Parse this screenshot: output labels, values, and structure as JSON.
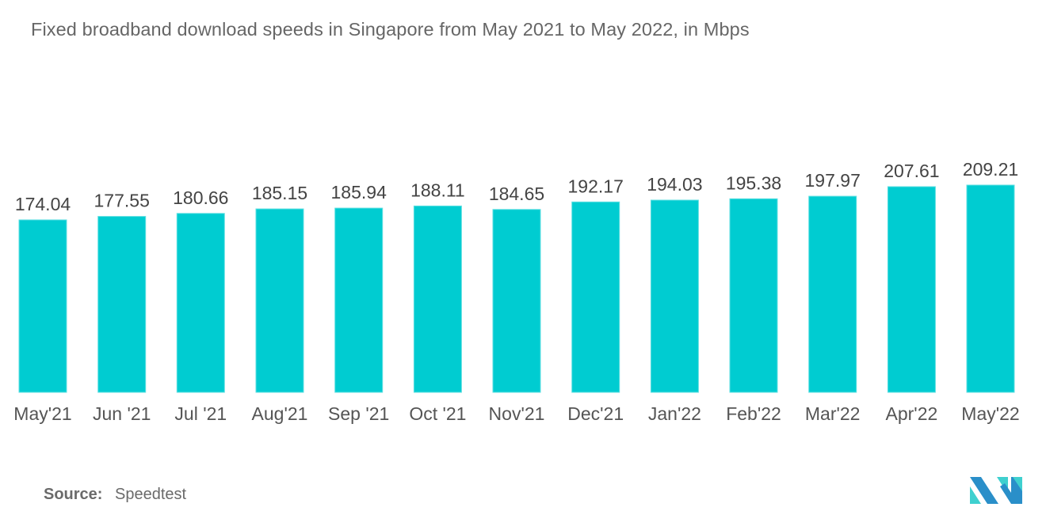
{
  "chart_data": {
    "type": "bar",
    "title": "Fixed broadband download speeds in Singapore from May 2021 to May 2022, in Mbps",
    "xlabel": "",
    "ylabel": "",
    "categories": [
      "May'21",
      "Jun '21",
      "Jul '21",
      "Aug'21",
      "Sep '21",
      "Oct '21",
      "Nov'21",
      "Dec'21",
      "Jan'22",
      "Feb'22",
      "Mar'22",
      "Apr'22",
      "May'22"
    ],
    "values": [
      174.04,
      177.55,
      180.66,
      185.15,
      185.94,
      188.11,
      184.65,
      192.17,
      194.03,
      195.38,
      197.97,
      207.61,
      209.21
    ],
    "value_labels": [
      "174.04",
      "177.55",
      "180.66",
      "185.15",
      "185.94",
      "188.11",
      "184.65",
      "192.17",
      "194.03",
      "195.38",
      "197.97",
      "207.61",
      "209.21"
    ],
    "ylim": [
      0,
      209.21
    ],
    "grid": false,
    "legend": "none",
    "bar_color": "#00ccd1"
  },
  "source": {
    "label": "Source:",
    "value": "Speedtest"
  },
  "logo": {
    "icon": "mordor-intelligence-logo-icon",
    "colors": [
      "#2a8fc9",
      "#3fd0cf"
    ]
  }
}
